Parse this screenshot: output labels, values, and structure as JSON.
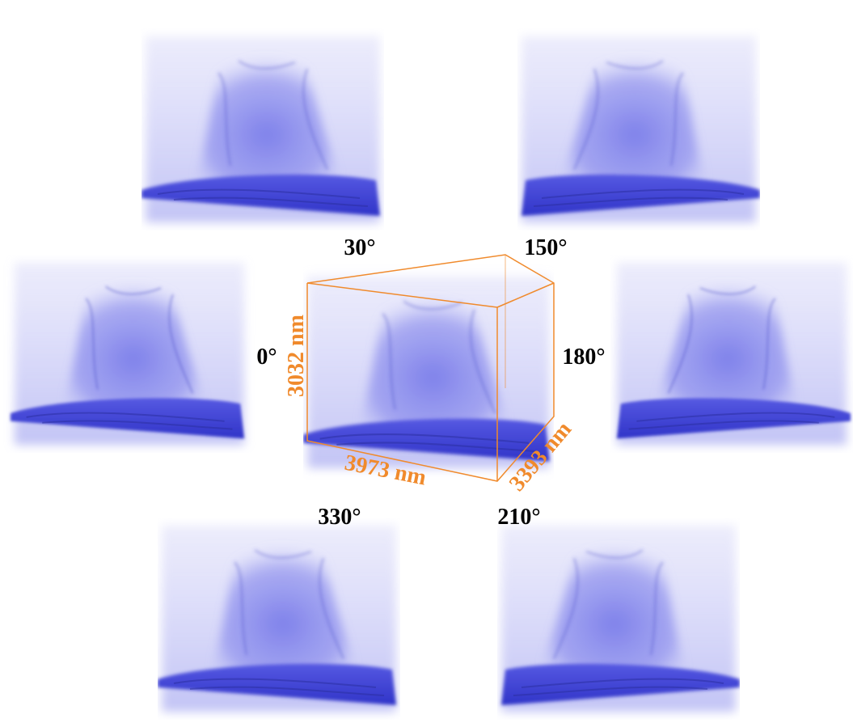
{
  "views": [
    {
      "angle": "30°"
    },
    {
      "angle": "150°"
    },
    {
      "angle": "0°"
    },
    {
      "angle": "180°"
    },
    {
      "angle": "330°"
    },
    {
      "angle": "210°"
    }
  ],
  "dimensions": {
    "height": "3032 nm",
    "width": "3973 nm",
    "depth": "3393 nm"
  }
}
